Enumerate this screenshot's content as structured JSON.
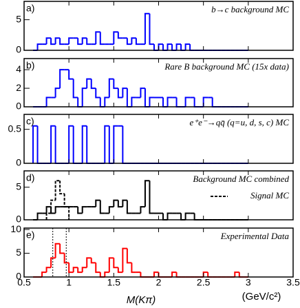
{
  "chart_data": [
    {
      "type": "histogram",
      "label": "a)",
      "title": "b→c background MC",
      "color": "#0000ff",
      "bins": [
        0.6,
        0.65,
        0.7,
        0.75,
        0.8,
        0.85,
        0.9,
        0.95,
        1.0,
        1.05,
        1.1,
        1.15,
        1.2,
        1.25,
        1.3,
        1.35,
        1.4,
        1.45,
        1.5,
        1.55,
        1.6,
        1.65,
        1.7,
        1.75,
        1.8,
        1.85,
        1.9,
        1.95,
        2.0,
        2.05,
        2.1,
        2.15,
        2.2,
        2.25,
        2.3,
        2.35,
        2.4,
        2.45,
        2.5,
        2.55,
        2.6,
        2.65,
        2.7,
        2.75,
        2.8,
        2.85,
        2.9,
        2.95,
        3.0
      ],
      "values": [
        0,
        1,
        1,
        2,
        1,
        2,
        1,
        1,
        2,
        2,
        1,
        2,
        1,
        1,
        3,
        1,
        1,
        1,
        3,
        2,
        2,
        1,
        2,
        1,
        1,
        6,
        1,
        0,
        1,
        0,
        1,
        0,
        1,
        0,
        1,
        0,
        0,
        0,
        0,
        0,
        0,
        0,
        0,
        0,
        0,
        0,
        0,
        0
      ],
      "xlim": [
        0.5,
        3.5
      ],
      "xticks": [
        0.5,
        1,
        1.5,
        2,
        2.5,
        3,
        3.5
      ],
      "ylim": [
        0,
        8
      ],
      "yticks": [
        0,
        5
      ]
    },
    {
      "type": "histogram",
      "label": "b)",
      "title": "Rare B background MC (15x data)",
      "color": "#0000ff",
      "bins": [
        0.6,
        0.65,
        0.7,
        0.75,
        0.8,
        0.85,
        0.9,
        0.95,
        1.0,
        1.05,
        1.1,
        1.15,
        1.2,
        1.25,
        1.3,
        1.35,
        1.4,
        1.45,
        1.5,
        1.55,
        1.6,
        1.65,
        1.7,
        1.75,
        1.8,
        1.85,
        1.9,
        1.95,
        2.0,
        2.05,
        2.1,
        2.15,
        2.2,
        2.25,
        2.3,
        2.35,
        2.4,
        2.45,
        2.5,
        2.55,
        2.6,
        2.65,
        2.7,
        2.75,
        2.8,
        2.85,
        2.9,
        2.95,
        3.0
      ],
      "values": [
        0,
        0,
        0,
        1,
        1,
        2,
        4,
        4,
        3,
        1,
        0,
        2,
        3,
        2,
        1,
        0,
        1,
        3,
        2,
        1,
        2,
        0,
        1,
        1,
        2,
        0,
        1,
        1,
        1,
        0,
        1,
        1,
        0,
        0,
        1,
        1,
        0,
        0,
        1,
        1,
        0,
        0,
        0,
        0,
        0,
        0,
        0,
        0
      ],
      "xlim": [
        0.5,
        3.5
      ],
      "xticks": [
        0.5,
        1,
        1.5,
        2,
        2.5,
        3,
        3.5
      ],
      "ylim": [
        0,
        5.2
      ],
      "yticks": [
        0,
        2,
        4
      ]
    },
    {
      "type": "histogram",
      "label": "c)",
      "title": "e⁺e⁻→qq̄ (q=u, d, s, c) MC",
      "color": "#0000ff",
      "bins": [
        0.6,
        0.65,
        0.7,
        0.75,
        0.8,
        0.85,
        0.9,
        0.95,
        1.0,
        1.05,
        1.1,
        1.15,
        1.2,
        1.25,
        1.3,
        1.35,
        1.4,
        1.45,
        1.5,
        1.55,
        1.6,
        1.65,
        1.7,
        1.75,
        1.8,
        1.85,
        1.9,
        1.95,
        2.0,
        2.05,
        2.1,
        2.15,
        2.2,
        2.25,
        2.3,
        2.35,
        2.4,
        2.45,
        2.5,
        2.55,
        2.6,
        2.65,
        2.7,
        2.75,
        2.8,
        2.85,
        2.9,
        2.95,
        3.0
      ],
      "values": [
        0.55,
        0,
        0,
        0,
        0.55,
        0,
        0,
        0,
        0.55,
        0,
        0,
        0.55,
        0,
        0,
        0,
        0,
        0.55,
        0,
        0.55,
        0.55,
        0,
        0,
        0,
        0,
        0,
        0,
        0,
        0,
        0,
        0,
        0,
        0,
        0,
        0,
        0,
        0,
        0,
        0,
        0,
        0,
        0,
        0,
        0,
        0,
        0,
        0,
        0,
        0
      ],
      "xlim": [
        0.5,
        3.5
      ],
      "xticks": [
        0.5,
        1,
        1.5,
        2,
        2.5,
        3,
        3.5
      ],
      "ylim": [
        0,
        0.72
      ],
      "yticks": [
        0,
        0.5
      ]
    },
    {
      "type": "histogram",
      "label": "d)",
      "title": "Background MC combined",
      "color": "#000000",
      "bins": [
        0.6,
        0.65,
        0.7,
        0.75,
        0.8,
        0.85,
        0.9,
        0.95,
        1.0,
        1.05,
        1.1,
        1.15,
        1.2,
        1.25,
        1.3,
        1.35,
        1.4,
        1.45,
        1.5,
        1.55,
        1.6,
        1.65,
        1.7,
        1.75,
        1.8,
        1.85,
        1.9,
        1.95,
        2.0,
        2.05,
        2.1,
        2.15,
        2.2,
        2.25,
        2.3,
        2.35,
        2.4,
        2.45,
        2.5,
        2.55,
        2.6,
        2.65,
        2.7,
        2.75,
        2.8,
        2.85,
        2.9,
        2.95,
        3.0
      ],
      "values": [
        0,
        1,
        1,
        2,
        1,
        2,
        2,
        2,
        2,
        2,
        1,
        2,
        2,
        2,
        3,
        1,
        1,
        2,
        3,
        2,
        3,
        1,
        1,
        1,
        2,
        6,
        1,
        1,
        1,
        0,
        1,
        1,
        1,
        0,
        1,
        1,
        0,
        0,
        0,
        0,
        0,
        0,
        0,
        0,
        0,
        0,
        0,
        0
      ],
      "overlay": {
        "name": "Signal MC",
        "style": "dashed",
        "color": "#000000",
        "values": [
          null,
          null,
          null,
          1,
          3,
          6,
          4,
          2,
          null,
          null,
          null,
          null,
          null,
          null,
          null,
          null,
          null,
          null,
          null,
          null,
          null,
          null,
          null,
          null,
          null,
          null,
          null,
          null,
          null,
          null,
          null,
          null,
          null,
          null,
          null,
          null,
          null,
          null,
          null,
          null,
          null,
          null,
          null,
          null,
          null,
          null,
          null,
          null
        ]
      },
      "xlim": [
        0.5,
        3.5
      ],
      "xticks": [
        0.5,
        1,
        1.5,
        2,
        2.5,
        3,
        3.5
      ],
      "ylim": [
        0,
        7.5
      ],
      "yticks": [
        0,
        5
      ]
    },
    {
      "type": "histogram",
      "label": "e)",
      "title": "Experimental Data",
      "color": "#ff0000",
      "bins": [
        0.6,
        0.65,
        0.7,
        0.75,
        0.8,
        0.85,
        0.9,
        0.95,
        1.0,
        1.05,
        1.1,
        1.15,
        1.2,
        1.25,
        1.3,
        1.35,
        1.4,
        1.45,
        1.5,
        1.55,
        1.6,
        1.65,
        1.7,
        1.75,
        1.8,
        1.85,
        1.9,
        1.95,
        2.0,
        2.05,
        2.1,
        2.15,
        2.2,
        2.25,
        2.3,
        2.35,
        2.4,
        2.45,
        2.5,
        2.55,
        2.6,
        2.65,
        2.7,
        2.75,
        2.8,
        2.85,
        2.9,
        2.95,
        3.0
      ],
      "values": [
        0,
        0,
        1,
        2,
        4,
        7,
        5,
        3,
        1,
        2,
        1,
        2,
        4,
        3,
        1,
        0,
        1,
        4,
        2,
        1,
        6,
        3,
        1,
        1,
        0,
        0,
        0,
        1,
        0,
        0,
        0,
        1,
        0,
        0,
        0,
        0,
        0,
        0,
        1,
        0,
        0,
        0,
        0,
        0,
        0,
        1,
        0,
        0
      ],
      "markers": [
        0.82,
        0.97
      ],
      "xlim": [
        0.5,
        3.5
      ],
      "xticks": [
        0.5,
        1,
        1.5,
        2,
        2.5,
        3,
        3.5
      ],
      "ylim": [
        0,
        10.3
      ],
      "yticks": [
        0,
        5,
        10
      ],
      "xlabel": "M(Kπ)",
      "xunit": "(GeV/c²)"
    }
  ]
}
